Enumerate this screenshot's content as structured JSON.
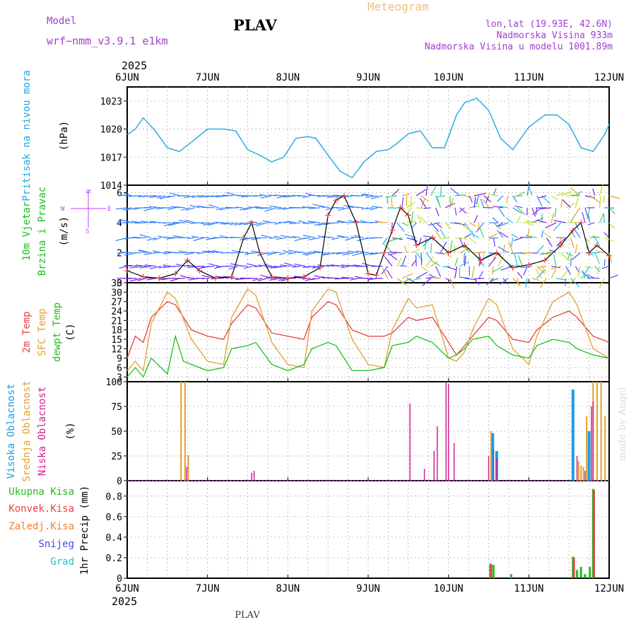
{
  "header": {
    "model_label": "Model",
    "model_name": "wrf−nmm_v3.9.1  e1km",
    "station": "PLAV",
    "chart_title": "Meteogram",
    "location_line1": "lon,lat (19.93E, 42.6N)",
    "location_line2": "Nadmorska Visina 933m",
    "location_line3": "Nadmorska Visina u modelu 1001.89m",
    "year_top": "2025",
    "year_bottom": "2025",
    "footer": "PLAV",
    "watermark": "made by Angel"
  },
  "colors": {
    "pressure": "#1ea8e0",
    "wind_label": "#18c018",
    "wind_label2": "#c040ff",
    "t2m": "#e84040",
    "tsfc": "#e0a030",
    "dewpt": "#20c020",
    "cloud_high": "#18a0e0",
    "cloud_mid": "#e0a030",
    "cloud_low": "#d02090",
    "precip_total": "#20c020",
    "precip_conv": "#e84040",
    "precip_frozen": "#f08030",
    "precip_snow": "#4848e0",
    "precip_hail": "#20c0c0",
    "watermark": "#dcdcdc",
    "meteogram": "#e8c080",
    "purple": "#a040d0"
  },
  "chart_data": [
    {
      "type": "line",
      "panel": "pressure",
      "labels": [
        "Pritisak na nivou mora",
        "(hPa)"
      ],
      "x_ticks": [
        "6JUN",
        "7JUN",
        "8JUN",
        "9JUN",
        "10JUN",
        "11JUN",
        "12JUN"
      ],
      "ylim": [
        1014,
        1024.5
      ],
      "y_ticks": [
        1014,
        1017,
        1020,
        1023
      ],
      "series": [
        {
          "x": [
            0,
            0.1,
            0.2,
            0.35,
            0.5,
            0.65,
            0.8,
            1.0,
            1.2,
            1.35,
            1.5,
            1.65,
            1.8,
            1.95,
            2.1,
            2.25,
            2.35,
            2.5,
            2.65,
            2.8,
            2.95,
            3.1,
            3.25,
            3.35,
            3.5,
            3.65,
            3.8,
            3.95,
            4.1,
            4.2,
            4.35,
            4.5,
            4.65,
            4.8,
            5.0,
            5.2,
            5.35,
            5.5,
            5.65,
            5.8,
            5.95,
            6.0
          ],
          "values": [
            1019.4,
            1020,
            1021.2,
            1019.8,
            1018,
            1017.6,
            1018.6,
            1020,
            1020,
            1019.8,
            1017.8,
            1017.2,
            1016.5,
            1017,
            1019,
            1019.2,
            1019,
            1017.2,
            1015.5,
            1014.8,
            1016.5,
            1017.6,
            1017.8,
            1018.4,
            1019.5,
            1019.8,
            1018,
            1018,
            1021.5,
            1022.8,
            1023.3,
            1022,
            1019,
            1017.8,
            1020.2,
            1021.5,
            1021.5,
            1020.5,
            1018,
            1017.6,
            1019.5,
            1020.5
          ]
        }
      ]
    },
    {
      "type": "line",
      "panel": "wind",
      "labels": [
        "10m Vjetar",
        "Brzina i Pravac",
        "(m/s)"
      ],
      "compass": [
        "N",
        "W",
        "E",
        "S"
      ],
      "ylim": [
        0,
        6.5
      ],
      "y_ticks": [
        0,
        2,
        4,
        6
      ],
      "series": [
        {
          "name": "speed",
          "x": [
            0,
            0.2,
            0.4,
            0.6,
            0.75,
            0.9,
            1.1,
            1.3,
            1.45,
            1.55,
            1.65,
            1.8,
            2.0,
            2.2,
            2.4,
            2.5,
            2.6,
            2.7,
            2.85,
            3.0,
            3.1,
            3.2,
            3.3,
            3.4,
            3.5,
            3.6,
            3.8,
            4.0,
            4.2,
            4.4,
            4.6,
            4.8,
            5.0,
            5.2,
            5.4,
            5.55,
            5.65,
            5.75,
            5.85,
            6.0
          ],
          "values": [
            0.8,
            0.4,
            0.3,
            0.6,
            1.5,
            0.8,
            0.3,
            0.4,
            3.0,
            4.0,
            2.0,
            0.4,
            0.3,
            0.4,
            1.0,
            4.5,
            5.5,
            5.8,
            4.0,
            0.6,
            0.5,
            2.0,
            3.5,
            5.0,
            4.5,
            2.5,
            3.0,
            2.0,
            2.5,
            1.5,
            2.0,
            1.0,
            1.2,
            1.5,
            2.5,
            3.5,
            4.0,
            2.0,
            2.5,
            1.8
          ]
        }
      ]
    },
    {
      "type": "line",
      "panel": "temperature",
      "labels": [
        "2m Temp",
        "SFC Temp",
        "dewpt Temp",
        "(C)"
      ],
      "ylim": [
        1.5,
        33
      ],
      "y_ticks": [
        3,
        6,
        9,
        12,
        15,
        18,
        21,
        24,
        27,
        30,
        33
      ],
      "series": [
        {
          "name": "2m Temp",
          "x": [
            0,
            0.1,
            0.2,
            0.3,
            0.5,
            0.6,
            0.8,
            1.0,
            1.2,
            1.3,
            1.5,
            1.6,
            1.8,
            2.0,
            2.2,
            2.3,
            2.5,
            2.6,
            2.8,
            3.0,
            3.2,
            3.3,
            3.5,
            3.6,
            3.8,
            4.0,
            4.1,
            4.2,
            4.3,
            4.5,
            4.6,
            4.8,
            5.0,
            5.1,
            5.3,
            5.5,
            5.6,
            5.8,
            6.0
          ],
          "values": [
            9,
            16,
            14,
            22,
            27,
            26,
            18,
            16,
            15,
            20,
            26,
            25,
            17,
            16,
            15,
            22,
            27,
            26,
            18,
            16,
            16,
            17,
            22,
            21,
            22,
            14,
            10,
            13,
            16,
            22,
            21,
            15,
            14,
            18,
            22,
            24,
            22,
            16,
            14
          ]
        },
        {
          "name": "SFC Temp",
          "x": [
            0,
            0.1,
            0.2,
            0.3,
            0.5,
            0.6,
            0.8,
            1.0,
            1.2,
            1.3,
            1.5,
            1.6,
            1.8,
            2.0,
            2.2,
            2.3,
            2.5,
            2.6,
            2.8,
            3.0,
            3.2,
            3.3,
            3.5,
            3.6,
            3.8,
            4.0,
            4.1,
            4.2,
            4.3,
            4.5,
            4.6,
            4.8,
            5.0,
            5.1,
            5.3,
            5.5,
            5.6,
            5.8,
            6.0
          ],
          "values": [
            5,
            8,
            5,
            20,
            30,
            28,
            15,
            8,
            7,
            22,
            31,
            29,
            14,
            7,
            6,
            24,
            31,
            30,
            15,
            7,
            6,
            18,
            28,
            25,
            26,
            9,
            8,
            11,
            18,
            28,
            26,
            12,
            7,
            16,
            27,
            30,
            26,
            12,
            9
          ]
        },
        {
          "name": "dewpt Temp",
          "x": [
            0,
            0.1,
            0.2,
            0.3,
            0.5,
            0.6,
            0.7,
            0.8,
            1.0,
            1.2,
            1.3,
            1.5,
            1.6,
            1.8,
            2.0,
            2.2,
            2.3,
            2.5,
            2.6,
            2.8,
            3.0,
            3.2,
            3.3,
            3.5,
            3.6,
            3.8,
            4.0,
            4.1,
            4.2,
            4.3,
            4.5,
            4.6,
            4.8,
            5.0,
            5.1,
            5.3,
            5.5,
            5.6,
            5.8,
            6.0
          ],
          "values": [
            3,
            6,
            3,
            9,
            4,
            16,
            8,
            7,
            5,
            6,
            12,
            13,
            14,
            7,
            5,
            7,
            12,
            14,
            13,
            5,
            5,
            6,
            13,
            14,
            16,
            14,
            9,
            10,
            12,
            15,
            16,
            13,
            10,
            9,
            13,
            15,
            14,
            12,
            10,
            9
          ]
        }
      ]
    },
    {
      "type": "bar",
      "panel": "cloud",
      "labels": [
        "Visoka Oblacnost",
        "Srednja Oblacnost",
        "Niska Oblacnost",
        "(%)"
      ],
      "ylim": [
        0,
        100
      ],
      "y_ticks": [
        0,
        25,
        50,
        75,
        100
      ],
      "series": [
        {
          "name": "Visoka Oblacnost",
          "x": [
            4.55,
            4.6,
            5.55,
            5.75
          ],
          "values": [
            48,
            30,
            92,
            50
          ]
        },
        {
          "name": "Srednja Oblacnost",
          "x": [
            0.67,
            0.72,
            0.76,
            4.53,
            5.62,
            5.65,
            5.68,
            5.72,
            5.8,
            5.85,
            5.9,
            5.95
          ],
          "values": [
            100,
            100,
            26,
            50,
            20,
            15,
            14,
            65,
            100,
            100,
            100,
            65
          ]
        },
        {
          "name": "Niska Oblacnost",
          "x": [
            0.74,
            1.55,
            1.58,
            3.52,
            3.7,
            3.82,
            3.86,
            3.97,
            4.0,
            4.07,
            4.5,
            4.56,
            4.6,
            5.6,
            5.7,
            5.78,
            5.8
          ],
          "values": [
            14,
            8,
            10,
            78,
            12,
            30,
            55,
            100,
            98,
            38,
            25,
            32,
            22,
            25,
            10,
            75,
            80
          ]
        }
      ]
    },
    {
      "type": "bar",
      "panel": "precip",
      "labels": [
        "Ukupna Kisa",
        "Konvek.Kisa",
        "Zaledj.Kisa",
        "Snijeg",
        "Grad",
        "1hr Precip (mm)"
      ],
      "ylim": [
        0,
        0.95
      ],
      "y_ticks": [
        0,
        0.2,
        0.4,
        0.6,
        0.8
      ],
      "series": [
        {
          "name": "Ukupna Kisa",
          "x": [
            4.52,
            4.56,
            4.78,
            5.55,
            5.6,
            5.65,
            5.7,
            5.76,
            5.8
          ],
          "values": [
            0.14,
            0.13,
            0.04,
            0.21,
            0.08,
            0.11,
            0.04,
            0.11,
            0.87
          ]
        },
        {
          "name": "Konvek.Kisa",
          "x": [
            4.53,
            5.56,
            5.81
          ],
          "values": [
            0.14,
            0.2,
            0.86
          ]
        }
      ]
    }
  ]
}
